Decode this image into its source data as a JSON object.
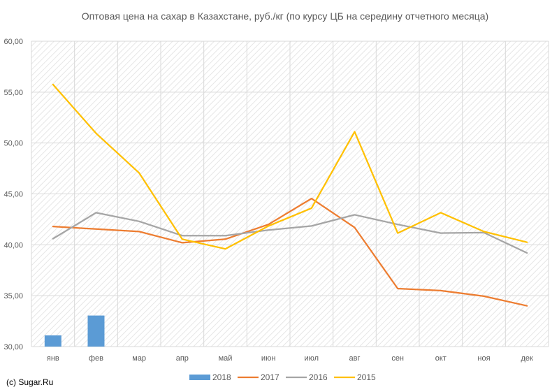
{
  "credit": "(c) Sugar.Ru",
  "colors": {
    "grid": "#d9d9d9",
    "hatch": "#e3e3e3",
    "text": "#595959",
    "series_2018": "#5b9bd5",
    "series_2017": "#ed7d31",
    "series_2016": "#a5a5a5",
    "series_2015": "#ffc000"
  },
  "chart_data": {
    "type": "bar+line",
    "title": "Оптовая цена на сахар в Казахстане, руб./кг (по курсу ЦБ на середину отчетного месяца)",
    "categories": [
      "янв",
      "фев",
      "мар",
      "апр",
      "май",
      "июн",
      "июл",
      "авг",
      "сен",
      "окт",
      "ноя",
      "дек"
    ],
    "ylim": [
      30,
      60
    ],
    "y_ticks": [
      "30,00",
      "35,00",
      "40,00",
      "45,00",
      "50,00",
      "55,00",
      "60,00"
    ],
    "grid": true,
    "legend_position": "bottom",
    "bar_series": {
      "name": "2018",
      "values": [
        31.1,
        33.05,
        null,
        null,
        null,
        null,
        null,
        null,
        null,
        null,
        null,
        null
      ]
    },
    "series": [
      {
        "name": "2017",
        "values": [
          41.8,
          41.55,
          41.3,
          40.2,
          40.55,
          42.0,
          44.55,
          41.7,
          35.7,
          35.5,
          34.95,
          34.0
        ]
      },
      {
        "name": "2016",
        "values": [
          40.6,
          43.15,
          42.3,
          40.9,
          40.9,
          41.45,
          41.85,
          42.95,
          42.0,
          41.15,
          41.2,
          39.2
        ]
      },
      {
        "name": "2015",
        "values": [
          55.75,
          50.95,
          47.05,
          40.55,
          39.6,
          41.85,
          43.6,
          51.1,
          41.15,
          43.15,
          41.3,
          40.25
        ]
      }
    ]
  }
}
